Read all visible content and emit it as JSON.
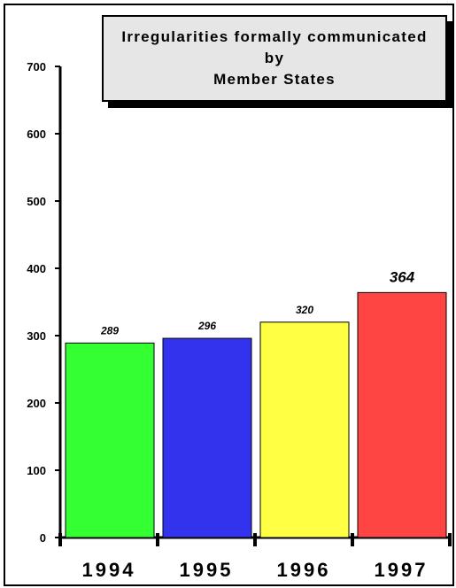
{
  "chart_data": {
    "type": "bar",
    "title_lines": [
      "Irregularities formally communicated",
      "by",
      "Member States"
    ],
    "categories": [
      "1994",
      "1995",
      "1996",
      "1997"
    ],
    "values": [
      289,
      296,
      320,
      364
    ],
    "data_labels": [
      "289",
      "296",
      "320",
      "364"
    ],
    "bar_colors": [
      "#33ff33",
      "#3333ee",
      "#ffff44",
      "#ff4444"
    ],
    "ylim": [
      0,
      700
    ],
    "yticks": [
      0,
      100,
      200,
      300,
      400,
      500,
      600,
      700
    ],
    "ytick_labels": [
      "0",
      "100",
      "200",
      "300",
      "400",
      "500",
      "600",
      "700"
    ],
    "grid": false,
    "xlabel": "",
    "ylabel": ""
  }
}
